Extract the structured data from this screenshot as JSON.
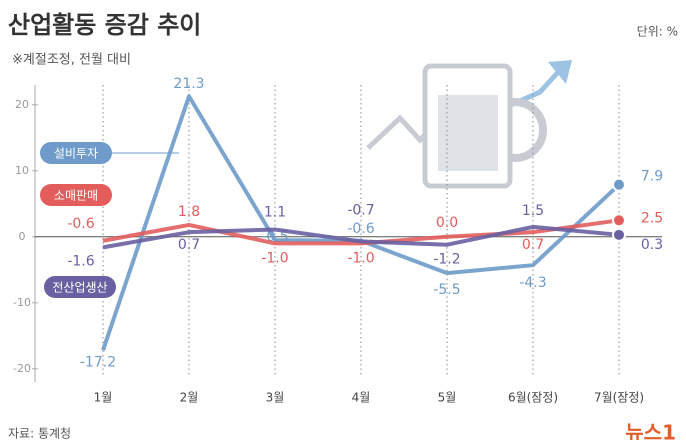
{
  "chart_data": {
    "type": "line",
    "title": "산업활동 증감 추이",
    "subtitle": "※계절조정, 전월 대비",
    "unit": "단위: %",
    "source": "자료: 통계청",
    "logo": "뉴스1",
    "categories": [
      "1월",
      "2월",
      "3월",
      "4월",
      "5월",
      "6월(잠정)",
      "7월(잠정)"
    ],
    "series": [
      {
        "name": "설비투자",
        "color": "#6e9bc9",
        "values": [
          -17.2,
          21.3,
          -0.5,
          -0.6,
          -5.5,
          -4.3,
          7.9
        ],
        "value_labels": [
          "-17.2",
          "21.3",
          "-0.5",
          "-0.6",
          "-5.5",
          "-4.3",
          "7.9"
        ]
      },
      {
        "name": "소매판매",
        "color": "#e35d5d",
        "values": [
          -0.6,
          1.8,
          -1.0,
          -1.0,
          0.0,
          0.7,
          2.5
        ],
        "value_labels": [
          "-0.6",
          "1.8",
          "-1.0",
          "-1.0",
          "0.0",
          "0.7",
          "2.5"
        ]
      },
      {
        "name": "전산업생산",
        "color": "#6860a2",
        "values": [
          -1.6,
          0.7,
          1.1,
          -0.7,
          -1.2,
          1.5,
          0.3
        ],
        "value_labels": [
          "-1.6",
          "0.7",
          "1.1",
          "-0.7",
          "-1.2",
          "1.5",
          "0.3"
        ]
      }
    ],
    "ylim": [
      -22,
      23
    ],
    "yticks": [
      -20,
      -10,
      0,
      10,
      20
    ]
  }
}
